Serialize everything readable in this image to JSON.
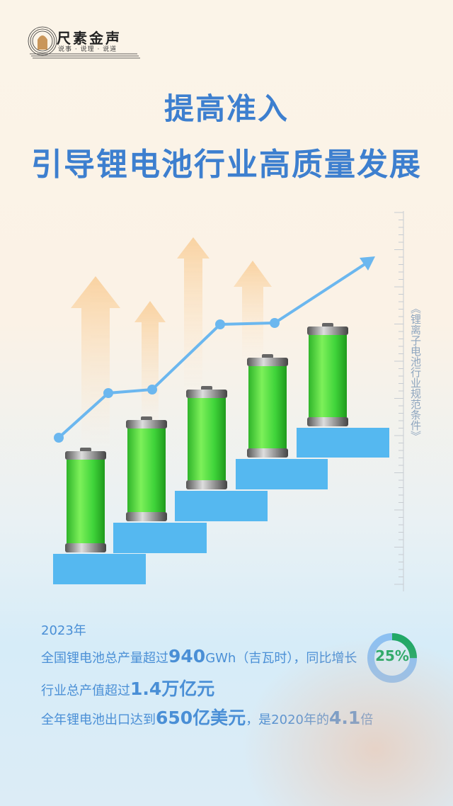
{
  "brand": {
    "name": "尺素金声",
    "slogan": "说事 · 说理 · 说道"
  },
  "title": {
    "line1": "提高准入",
    "line2": "引导锂电池行业高质量发展"
  },
  "side_label": "《锂离子电池行业规范条件》",
  "info": {
    "year": "2023年",
    "line1": {
      "prefix": "全国锂电池总产量超过",
      "value": "940",
      "suffix": "GWh（吉瓦时），同比增长"
    },
    "line2": {
      "prefix": "行业总产值超过",
      "value": "1.4万亿元"
    },
    "line3": {
      "prefix": "全年锂电池出口达到",
      "value": "650亿美元",
      "mid": "，是2020年的",
      "value2": "4.1",
      "suffix": "倍"
    },
    "growth": {
      "label": "25%",
      "fraction": 0.25
    }
  },
  "colors": {
    "title": "#3d7fcf",
    "text": "#4a8fd6",
    "step": "#55b8f0",
    "battery": "#3fd43a",
    "donut_fill": "#22a866",
    "donut_track": "#8cc0f2"
  }
}
